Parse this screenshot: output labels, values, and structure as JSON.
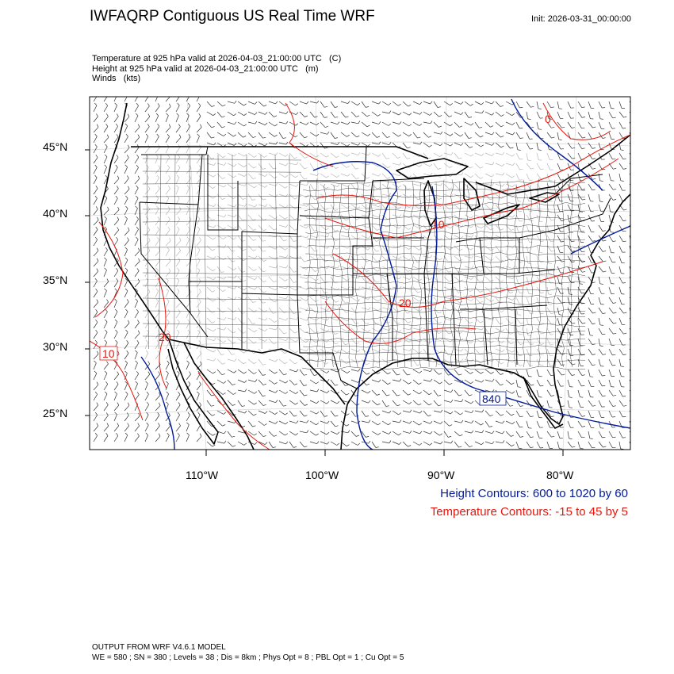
{
  "title": "IWFAQRP Contiguous US Real Time WRF",
  "init": "Init: 2026-03-31_00:00:00",
  "fields": {
    "temperature": "Temperature at 925 hPa valid at 2026-04-03_21:00:00 UTC   (C)",
    "height": "Height at 925 hPa valid at 2026-04-03_21:00:00 UTC   (m)",
    "winds": "Winds   (kts)"
  },
  "lat_labels": [
    "45°N",
    "40°N",
    "35°N",
    "30°N",
    "25°N"
  ],
  "lon_labels": [
    "110°W",
    "100°W",
    "90°W",
    "80°W"
  ],
  "contour_labels": {
    "height": "840",
    "temp": [
      "10",
      "20",
      "20",
      "10",
      "0"
    ]
  },
  "legend": {
    "height": "Height Contours: 600 to 1020 by 60",
    "temp": "Temperature Contours: -15 to 45 by 5"
  },
  "footer": {
    "model": "OUTPUT FROM WRF V4.6.1 MODEL",
    "params": "WE = 580 ; SN = 380 ; Levels = 38 ; Dis = 8km ; Phys Opt = 8 ; PBL Opt = 1 ; Cu Opt = 5"
  },
  "colors": {
    "height": "#001a99",
    "temp": "#e8160c",
    "boundary": "#000000",
    "grid": "#cccccc",
    "wind": "#333333"
  }
}
